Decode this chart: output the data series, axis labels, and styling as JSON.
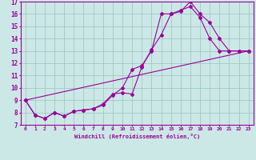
{
  "xlabel": "Windchill (Refroidissement éolien,°C)",
  "ylabel": "",
  "xlim": [
    -0.5,
    23.5
  ],
  "ylim": [
    7,
    17
  ],
  "xticks": [
    0,
    1,
    2,
    3,
    4,
    5,
    6,
    7,
    8,
    9,
    10,
    11,
    12,
    13,
    14,
    15,
    16,
    17,
    18,
    19,
    20,
    21,
    22,
    23
  ],
  "yticks": [
    7,
    8,
    9,
    10,
    11,
    12,
    13,
    14,
    15,
    16,
    17
  ],
  "background_color": "#cce8e6",
  "grid_color": "#a0c8c5",
  "line_color": "#990099",
  "line1_x": [
    0,
    1,
    2,
    3,
    4,
    5,
    6,
    7,
    8,
    9,
    10,
    11,
    12,
    13,
    14,
    15,
    16,
    17,
    18,
    19,
    20,
    21,
    22,
    23
  ],
  "line1_y": [
    9.0,
    7.8,
    7.5,
    8.0,
    7.7,
    8.1,
    8.2,
    8.3,
    8.7,
    9.5,
    9.6,
    9.5,
    11.7,
    13.1,
    14.3,
    16.0,
    16.2,
    17.0,
    16.0,
    15.3,
    14.0,
    13.0,
    13.0,
    13.0
  ],
  "line2_x": [
    0,
    1,
    2,
    3,
    4,
    5,
    6,
    7,
    8,
    9,
    10,
    11,
    12,
    13,
    14,
    15,
    16,
    17,
    18,
    19,
    20,
    21,
    22,
    23
  ],
  "line2_y": [
    9.0,
    7.8,
    7.5,
    8.0,
    7.7,
    8.1,
    8.2,
    8.3,
    8.6,
    9.4,
    10.0,
    11.5,
    11.8,
    13.0,
    16.0,
    16.0,
    16.3,
    16.6,
    15.7,
    14.0,
    13.0,
    13.0,
    13.0,
    13.0
  ],
  "line3_x": [
    0,
    23
  ],
  "line3_y": [
    9.0,
    13.0
  ]
}
